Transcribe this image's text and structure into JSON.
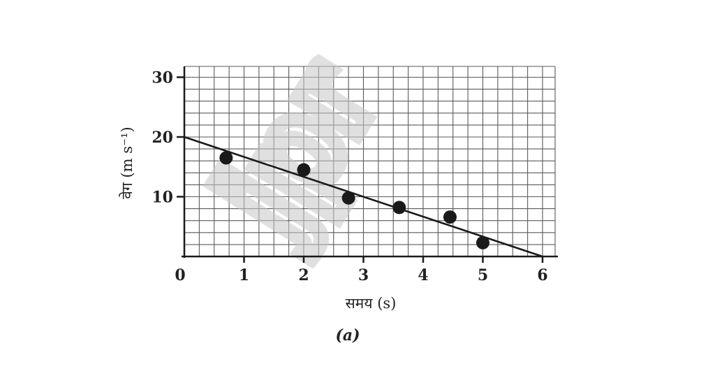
{
  "chart_data": {
    "type": "scatter",
    "caption": "(a)",
    "xlabel": "समय (s)",
    "ylabel": "वेग (m s⁻¹)",
    "xlim": [
      0,
      6.2
    ],
    "ylim": [
      0,
      32
    ],
    "xticks": [
      0,
      1,
      2,
      3,
      4,
      5,
      6
    ],
    "xtick_labels": [
      "0",
      "1",
      "2",
      "3",
      "4",
      "5",
      "6"
    ],
    "yticks": [
      10,
      20,
      30
    ],
    "ytick_labels": [
      "10",
      "20",
      "30"
    ],
    "grid": true,
    "series": [
      {
        "type": "scatter",
        "x": [
          0.7,
          2.0,
          2.75,
          3.6,
          4.45,
          5.0
        ],
        "y": [
          16.5,
          14.5,
          9.8,
          8.2,
          6.6,
          2.3
        ]
      }
    ],
    "fit_line": {
      "x": [
        0,
        6
      ],
      "y": [
        20,
        0
      ]
    },
    "watermark": "jpr"
  }
}
